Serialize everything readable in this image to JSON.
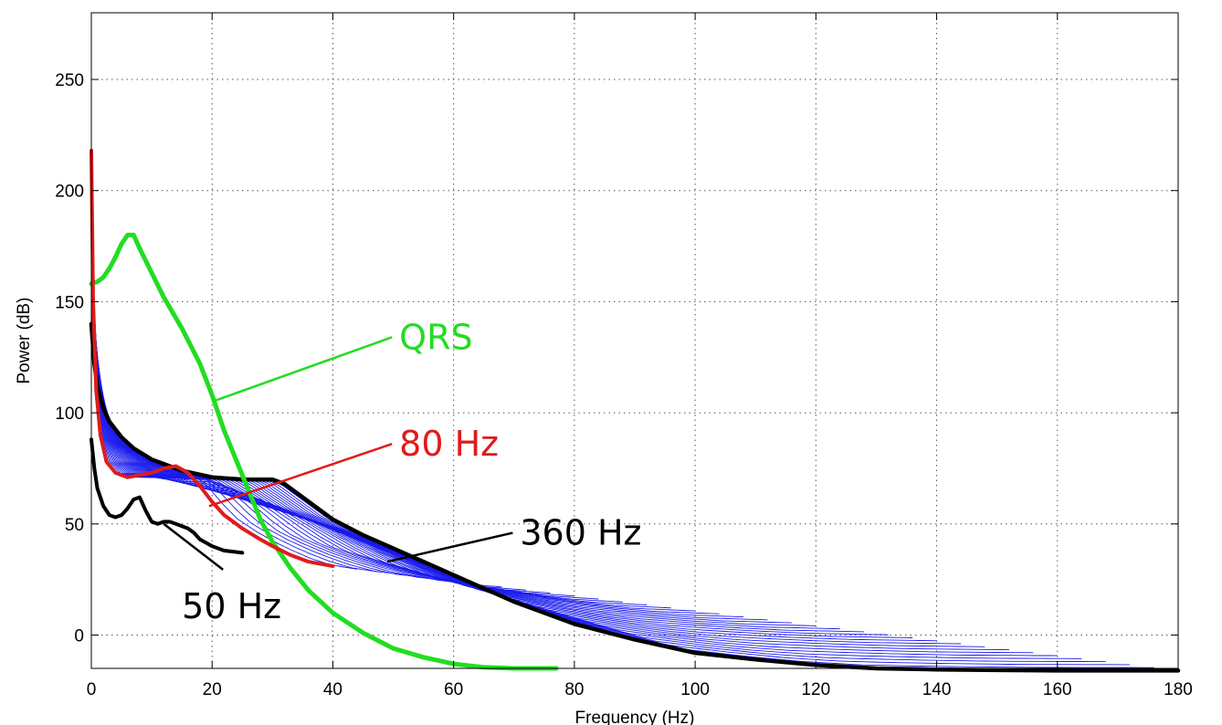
{
  "chart_data": {
    "type": "line",
    "title": "",
    "xlabel": "Frequency (Hz)",
    "ylabel": "Power (dB)",
    "xlim": [
      0,
      180
    ],
    "ylim": [
      -15,
      280
    ],
    "xticks": [
      0,
      20,
      40,
      60,
      80,
      100,
      120,
      140,
      160,
      180
    ],
    "yticks": [
      0,
      50,
      100,
      150,
      200,
      250
    ],
    "grid": true,
    "colors": {
      "qrs": "#22dd22",
      "rate_80": "#e01b1b",
      "rate_360": "#000000",
      "rate_50": "#000000",
      "band": "#1a1aee",
      "grid": "#555555"
    },
    "series": [
      {
        "name": "QRS",
        "x": [
          0,
          1,
          2,
          3,
          4,
          5,
          6,
          7,
          8,
          10,
          12,
          15,
          18,
          20,
          22,
          25,
          28,
          30,
          33,
          36,
          40,
          45,
          50,
          55,
          60,
          65,
          70,
          77
        ],
        "y": [
          158,
          159,
          161,
          165,
          170,
          176,
          180,
          180,
          174,
          163,
          152,
          138,
          122,
          108,
          92,
          72,
          52,
          42,
          30,
          20,
          10,
          1,
          -6,
          -10,
          -13,
          -14.5,
          -15,
          -15
        ]
      },
      {
        "name": "80 Hz",
        "x": [
          0,
          0.3,
          0.8,
          1.5,
          2.5,
          4,
          6,
          8,
          10,
          12,
          14,
          16,
          18,
          20,
          22,
          25,
          28,
          30,
          33,
          36,
          40
        ],
        "y": [
          218,
          150,
          110,
          90,
          78,
          73,
          71,
          72,
          73,
          75,
          76,
          73,
          67,
          60,
          54,
          48,
          43,
          40,
          36,
          33,
          31
        ]
      },
      {
        "name": "360 Hz",
        "x": [
          0,
          0.5,
          1,
          2,
          3,
          5,
          7,
          10,
          15,
          20,
          25,
          28,
          30,
          32,
          35,
          40,
          45,
          50,
          60,
          70,
          80,
          90,
          100,
          110,
          120,
          130,
          140,
          150,
          160,
          170,
          180
        ],
        "y": [
          140,
          122,
          112,
          102,
          96,
          89,
          84,
          79,
          74,
          71,
          70,
          70,
          70,
          68,
          62,
          52,
          45,
          39,
          27,
          15,
          5,
          -2,
          -8,
          -11,
          -13.5,
          -15,
          -15.5,
          -15.8,
          -16,
          -16,
          -16
        ]
      },
      {
        "name": "50 Hz",
        "x": [
          0,
          0.5,
          1,
          2,
          3,
          4,
          5,
          6,
          7,
          8,
          9,
          10,
          11,
          12,
          13,
          14,
          15,
          16,
          17,
          18,
          20,
          22,
          25
        ],
        "y": [
          88,
          75,
          66,
          58,
          54,
          53,
          54,
          57,
          61,
          62,
          56,
          51,
          50,
          51,
          51,
          50,
          49,
          48,
          46,
          43,
          40,
          38,
          37
        ]
      }
    ],
    "annotations": [
      {
        "text": "QRS",
        "series": "QRS",
        "label_x": 51,
        "label_y": 134,
        "point_x": 20,
        "point_y": 105
      },
      {
        "text": "80 Hz",
        "series": "80 Hz",
        "label_x": 51,
        "label_y": 86,
        "point_x": 19.5,
        "point_y": 58
      },
      {
        "text": "360 Hz",
        "series": "360 Hz",
        "label_x": 71,
        "label_y": 46,
        "point_x": 49,
        "point_y": 33
      },
      {
        "text": "50 Hz",
        "series": "50 Hz",
        "label_x": 15,
        "label_y": 13,
        "point_x": 12,
        "point_y": 50
      }
    ]
  }
}
